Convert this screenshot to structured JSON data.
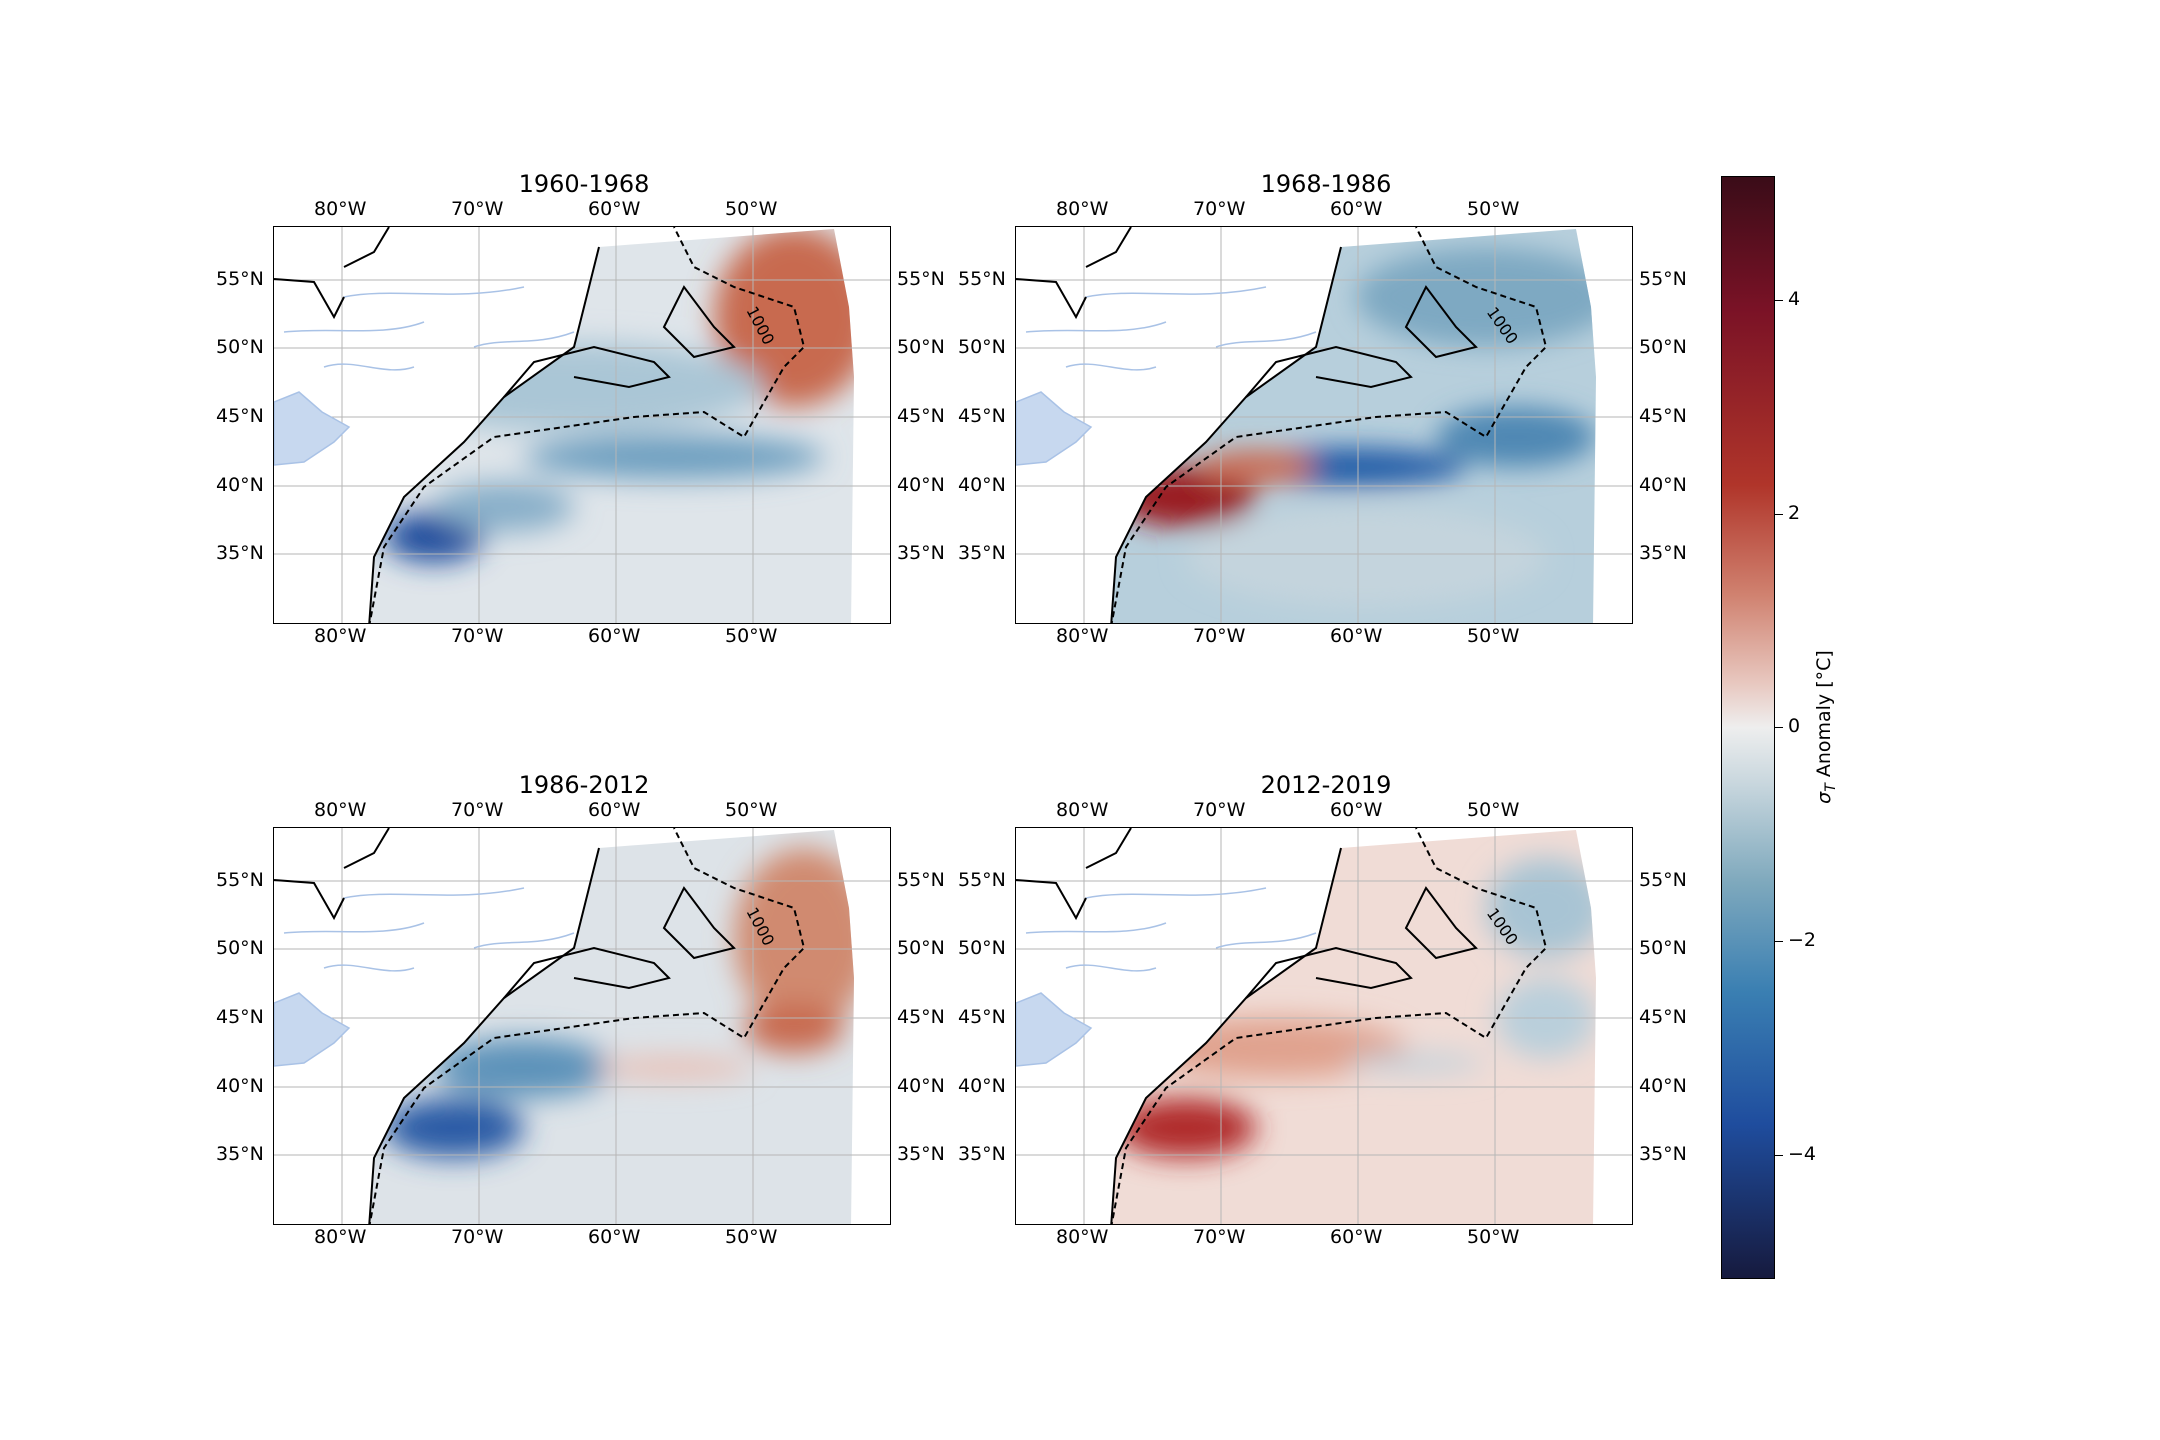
{
  "panels": [
    {
      "title": "1960-1968",
      "pattern": "p1"
    },
    {
      "title": "1968-1986",
      "pattern": "p2"
    },
    {
      "title": "1986-2012",
      "pattern": "p3"
    },
    {
      "title": "2012-2019",
      "pattern": "p4"
    }
  ],
  "axes": {
    "lon_labels": [
      "80°W",
      "70°W",
      "60°W",
      "50°W"
    ],
    "lat_labels": [
      "55°N",
      "50°N",
      "45°N",
      "40°N",
      "35°N"
    ],
    "contour_label": "1000"
  },
  "colorbar": {
    "title_symbol": "σ",
    "title_sub": "T",
    "title_rest": " Anomaly [°C]",
    "ticks": [
      "4",
      "2",
      "0",
      "−2",
      "−4"
    ],
    "colors": {
      "max": "#3a0c18",
      "mid": "#eeeeee",
      "min": "#161a3e"
    }
  }
}
